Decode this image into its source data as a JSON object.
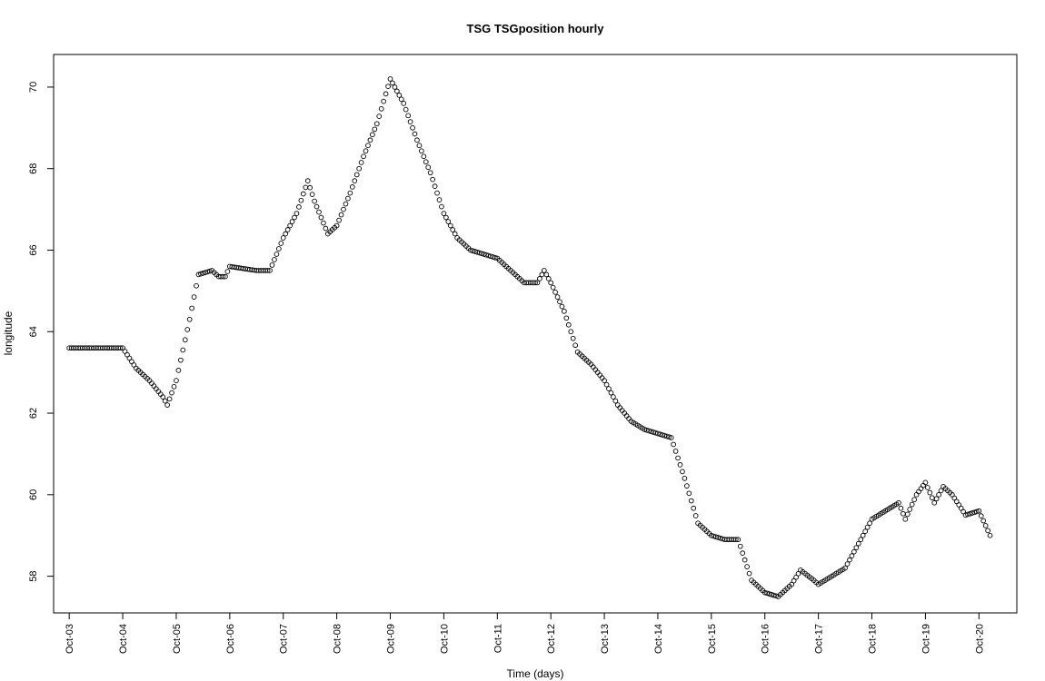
{
  "chart_data": {
    "type": "scatter",
    "title": "TSG TSGposition hourly",
    "xlabel": "Time (days)",
    "ylabel": "longitude",
    "x_tick_labels": [
      "Oct-03",
      "Oct-04",
      "Oct-05",
      "Oct-06",
      "Oct-07",
      "Oct-08",
      "Oct-09",
      "Oct-10",
      "Oct-11",
      "Oct-12",
      "Oct-13",
      "Oct-14",
      "Oct-15",
      "Oct-16",
      "Oct-17",
      "Oct-18",
      "Oct-19",
      "Oct-20"
    ],
    "y_ticks": [
      58,
      60,
      62,
      64,
      66,
      68,
      70
    ],
    "xlim": [
      "Oct-02 17:00",
      "Oct-20 17:00"
    ],
    "ylim": [
      57.1,
      70.8
    ],
    "marker": "open-circle",
    "grid": false,
    "legend": "none",
    "points": [
      [
        "Oct-03 00:00",
        63.6
      ],
      [
        "Oct-03 06:00",
        63.6
      ],
      [
        "Oct-03 12:00",
        63.6
      ],
      [
        "Oct-03 18:00",
        63.6
      ],
      [
        "Oct-04 00:00",
        63.6
      ],
      [
        "Oct-04 06:00",
        63.1
      ],
      [
        "Oct-04 12:00",
        62.8
      ],
      [
        "Oct-04 18:00",
        62.4
      ],
      [
        "Oct-04 20:00",
        62.2
      ],
      [
        "Oct-05 00:00",
        62.8
      ],
      [
        "Oct-05 06:00",
        64.3
      ],
      [
        "Oct-05 10:00",
        65.4
      ],
      [
        "Oct-05 16:00",
        65.5
      ],
      [
        "Oct-05 19:00",
        65.35
      ],
      [
        "Oct-05 22:00",
        65.35
      ],
      [
        "Oct-06 00:00",
        65.6
      ],
      [
        "Oct-06 12:00",
        65.5
      ],
      [
        "Oct-06 18:00",
        65.5
      ],
      [
        "Oct-07 00:00",
        66.3
      ],
      [
        "Oct-07 06:00",
        66.9
      ],
      [
        "Oct-07 11:00",
        67.7
      ],
      [
        "Oct-07 14:00",
        67.2
      ],
      [
        "Oct-07 20:00",
        66.4
      ],
      [
        "Oct-08 00:00",
        66.6
      ],
      [
        "Oct-08 06:00",
        67.4
      ],
      [
        "Oct-08 12:00",
        68.3
      ],
      [
        "Oct-08 18:00",
        69.1
      ],
      [
        "Oct-09 00:00",
        70.2
      ],
      [
        "Oct-09 06:00",
        69.6
      ],
      [
        "Oct-09 12:00",
        68.7
      ],
      [
        "Oct-09 18:00",
        67.9
      ],
      [
        "Oct-10 00:00",
        66.9
      ],
      [
        "Oct-10 06:00",
        66.3
      ],
      [
        "Oct-10 12:00",
        66.0
      ],
      [
        "Oct-10 18:00",
        65.9
      ],
      [
        "Oct-11 00:00",
        65.8
      ],
      [
        "Oct-11 06:00",
        65.5
      ],
      [
        "Oct-11 12:00",
        65.2
      ],
      [
        "Oct-11 18:00",
        65.2
      ],
      [
        "Oct-11 21:00",
        65.5
      ],
      [
        "Oct-12 00:00",
        65.2
      ],
      [
        "Oct-12 06:00",
        64.5
      ],
      [
        "Oct-12 12:00",
        63.5
      ],
      [
        "Oct-12 18:00",
        63.2
      ],
      [
        "Oct-13 00:00",
        62.8
      ],
      [
        "Oct-13 06:00",
        62.2
      ],
      [
        "Oct-13 12:00",
        61.8
      ],
      [
        "Oct-13 18:00",
        61.6
      ],
      [
        "Oct-14 00:00",
        61.5
      ],
      [
        "Oct-14 06:00",
        61.4
      ],
      [
        "Oct-14 12:00",
        60.4
      ],
      [
        "Oct-14 18:00",
        59.3
      ],
      [
        "Oct-15 00:00",
        59.0
      ],
      [
        "Oct-15 06:00",
        58.9
      ],
      [
        "Oct-15 12:00",
        58.9
      ],
      [
        "Oct-15 18:00",
        57.9
      ],
      [
        "Oct-16 00:00",
        57.6
      ],
      [
        "Oct-16 06:00",
        57.5
      ],
      [
        "Oct-16 12:00",
        57.8
      ],
      [
        "Oct-16 16:00",
        58.15
      ],
      [
        "Oct-16 22:00",
        57.9
      ],
      [
        "Oct-17 00:00",
        57.8
      ],
      [
        "Oct-17 06:00",
        58.0
      ],
      [
        "Oct-17 12:00",
        58.2
      ],
      [
        "Oct-17 18:00",
        58.8
      ],
      [
        "Oct-18 00:00",
        59.4
      ],
      [
        "Oct-18 06:00",
        59.6
      ],
      [
        "Oct-18 12:00",
        59.8
      ],
      [
        "Oct-18 15:00",
        59.4
      ],
      [
        "Oct-18 20:00",
        60.0
      ],
      [
        "Oct-19 00:00",
        60.3
      ],
      [
        "Oct-19 04:00",
        59.8
      ],
      [
        "Oct-19 08:00",
        60.2
      ],
      [
        "Oct-19 12:00",
        60.0
      ],
      [
        "Oct-19 18:00",
        59.5
      ],
      [
        "Oct-20 00:00",
        59.6
      ],
      [
        "Oct-20 05:00",
        59.0
      ]
    ]
  }
}
